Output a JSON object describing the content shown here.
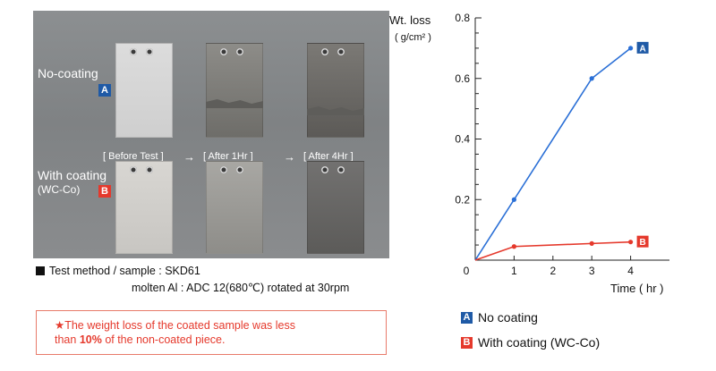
{
  "photo": {
    "row1_label": "No-coating",
    "row2_label": "With coating",
    "row2_sublabel": "(WC-Co)",
    "badge_a": "A",
    "badge_b": "B",
    "stages": [
      "[ Before Test ]",
      "[ After 1Hr ]",
      "[ After 4Hr ]"
    ],
    "arrow": "→"
  },
  "method": {
    "line1": "Test method / sample : SKD61",
    "line2": "molten Al : ADC 12(680℃) rotated at 30rpm"
  },
  "note": {
    "part1": "★The weight loss of the coated sample was less",
    "part2": "than ",
    "bold": "10%",
    "part3": " of the non-coated piece."
  },
  "chart_data": {
    "type": "line",
    "ylabel": "Wt. loss",
    "yunit": "( g/cm² )",
    "xlabel": "Time ( hr )",
    "ylim": [
      0,
      0.8
    ],
    "xlim": [
      0,
      5
    ],
    "yticks": [
      0.2,
      0.4,
      0.6,
      0.8
    ],
    "xticks": [
      1,
      2,
      3,
      4
    ],
    "origin_label": "0",
    "series": [
      {
        "name": "No coating",
        "badge": "A",
        "color": "#2a6fd6",
        "x": [
          0,
          1,
          3,
          4
        ],
        "y": [
          0,
          0.2,
          0.6,
          0.7
        ]
      },
      {
        "name": "With coating (WC-Co)",
        "badge": "B",
        "color": "#e5392c",
        "x": [
          0,
          1,
          3,
          4
        ],
        "y": [
          0,
          0.045,
          0.055,
          0.06
        ]
      }
    ]
  },
  "legend": [
    {
      "badge": "A",
      "label": "No coating",
      "color": "#1f5aa6"
    },
    {
      "badge": "B",
      "label": "With coating (WC-Co)",
      "color": "#e5392c"
    }
  ]
}
